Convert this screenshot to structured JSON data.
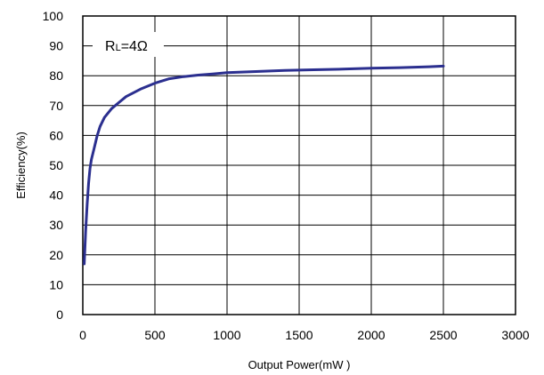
{
  "chart_data": {
    "type": "line",
    "title": "",
    "xlabel": "Output Power(mW )",
    "ylabel": "Efficiency(%)",
    "xlim": [
      0,
      3000
    ],
    "ylim": [
      0,
      100
    ],
    "x_ticks": [
      0,
      500,
      1000,
      1500,
      2000,
      2500,
      3000
    ],
    "y_ticks": [
      0,
      10,
      20,
      30,
      40,
      50,
      60,
      70,
      80,
      90,
      100
    ],
    "grid": true,
    "annotation": {
      "prefix": "R",
      "subscript": "L",
      "suffix": "=4Ω"
    },
    "series": [
      {
        "color": "#2b2f8f",
        "x": [
          10,
          20,
          30,
          40,
          50,
          60,
          80,
          100,
          120,
          150,
          200,
          250,
          300,
          400,
          500,
          600,
          700,
          800,
          900,
          1000,
          1200,
          1400,
          1600,
          1800,
          2000,
          2200,
          2400,
          2500
        ],
        "y": [
          17,
          28,
          37,
          44,
          49,
          52,
          56,
          60,
          63,
          66,
          69,
          71,
          73,
          75.5,
          77.5,
          79,
          79.7,
          80.2,
          80.6,
          81,
          81.4,
          81.8,
          82,
          82.2,
          82.5,
          82.7,
          83,
          83.2
        ]
      }
    ]
  }
}
